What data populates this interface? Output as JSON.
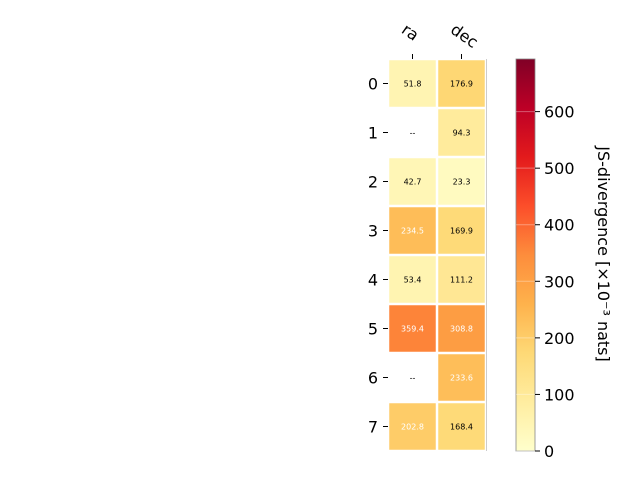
{
  "chart_data": {
    "type": "heatmap",
    "columns": [
      "ra",
      "dec"
    ],
    "rows": [
      "0",
      "1",
      "2",
      "3",
      "4",
      "5",
      "6",
      "7"
    ],
    "values": [
      [
        51.8,
        176.9
      ],
      [
        null,
        94.3
      ],
      [
        42.7,
        23.3
      ],
      [
        234.5,
        169.9
      ],
      [
        53.4,
        111.2
      ],
      [
        359.4,
        308.8
      ],
      [
        null,
        233.6
      ],
      [
        202.8,
        168.4
      ]
    ],
    "cell_labels": [
      [
        "51.8",
        "176.9"
      ],
      [
        "--",
        "94.3"
      ],
      [
        "42.7",
        "23.3"
      ],
      [
        "234.5",
        "169.9"
      ],
      [
        "53.4",
        "111.2"
      ],
      [
        "359.4",
        "308.8"
      ],
      [
        "--",
        "233.6"
      ],
      [
        "202.8",
        "168.4"
      ]
    ],
    "colorbar": {
      "label": "JS-divergence [×10⁻³ nats]",
      "ticks": [
        0,
        100,
        200,
        300,
        400,
        500,
        600
      ],
      "tick_labels": [
        "0",
        "100",
        "200",
        "300",
        "400",
        "500",
        "600"
      ],
      "range": [
        0,
        693
      ],
      "colormap": "YlOrRd"
    },
    "missing_label": "--"
  }
}
